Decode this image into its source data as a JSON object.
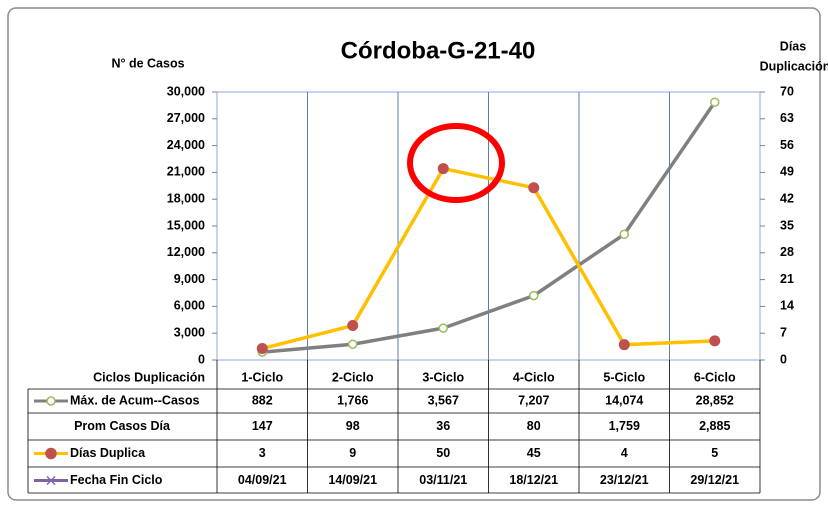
{
  "chart_data": {
    "type": "line",
    "title": "Córdoba-G-21-40",
    "y_label": "N° de Casos",
    "y2_label": [
      "Días",
      "Duplicación"
    ],
    "table_header": "Ciclos Duplicación",
    "categories": [
      "1-Ciclo",
      "2-Ciclo",
      "3-Ciclo",
      "4-Ciclo",
      "5-Ciclo",
      "6-Ciclo"
    ],
    "series": [
      {
        "name": "Máx. de Acum--Casos",
        "color": "#808080",
        "marker_color": "#9bbb59",
        "marker": "circle-hollow",
        "values": [
          882,
          1766,
          3567,
          7207,
          14074,
          28852
        ],
        "value_labels": [
          "882",
          "1,766",
          "3,567",
          "7,207",
          "14,074",
          "28,852"
        ]
      },
      {
        "name": "Prom Casos Día",
        "line": false,
        "values": [
          147,
          98,
          36,
          80,
          1759,
          2885
        ],
        "value_labels": [
          "147",
          "98",
          "36",
          "80",
          "1,759",
          "2,885"
        ]
      },
      {
        "name": "Días Duplica",
        "color": "#ffc000",
        "marker_color": "#c0504d",
        "marker": "circle",
        "axis": "y2",
        "values": [
          3,
          9,
          50,
          45,
          4,
          5
        ]
      },
      {
        "name": "Fecha Fin Ciclo",
        "color": "#8064a2",
        "marker": "x",
        "line": false,
        "values": [
          "04/09/21",
          "14/09/21",
          "03/11/21",
          "18/12/21",
          "23/12/21",
          "29/12/21"
        ]
      }
    ],
    "ylim": [
      0,
      30000
    ],
    "yticks": [
      0,
      {
        "value": 3000,
        "label": "3,000"
      },
      {
        "value": 6000,
        "label": "6,000"
      },
      {
        "value": 9000,
        "label": "9,000"
      },
      {
        "value": 12000,
        "label": "12,000"
      },
      {
        "value": 15000,
        "label": "15,000"
      },
      {
        "value": 18000,
        "label": "18,000"
      },
      {
        "value": 21000,
        "label": "21,000"
      },
      {
        "value": 24000,
        "label": "24,000"
      },
      {
        "value": 27000,
        "label": "27,000"
      },
      {
        "value": 30000,
        "label": "30,000"
      }
    ],
    "y2lim": [
      0,
      70
    ],
    "y2ticks": [
      0,
      7,
      14,
      21,
      28,
      35,
      42,
      49,
      56,
      63,
      70
    ],
    "grid": "vertical"
  }
}
